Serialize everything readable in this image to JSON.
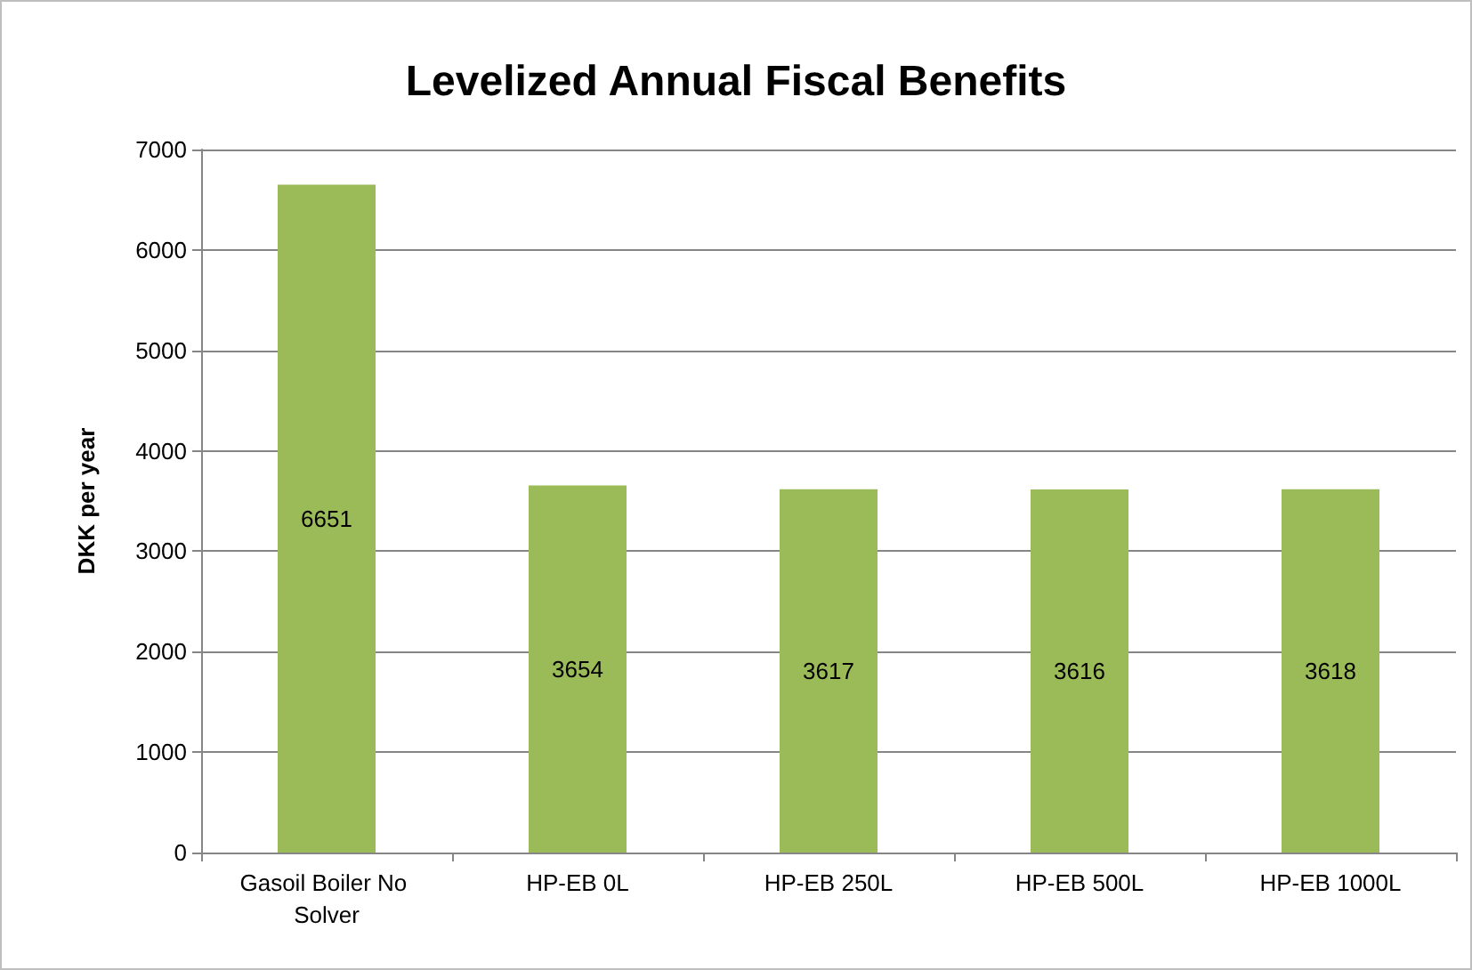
{
  "chart_data": {
    "type": "bar",
    "title": "Levelized Annual Fiscal Benefits",
    "ylabel": "DKK per year",
    "categories": [
      "Gasoil Boiler No Solver",
      "HP-EB 0L",
      "HP-EB 250L",
      "HP-EB 500L",
      "HP-EB 1000L"
    ],
    "values": [
      6651,
      3654,
      3617,
      3616,
      3618
    ],
    "color": "#9bbb59",
    "ylim": [
      0,
      7000
    ],
    "yticks": [
      0,
      1000,
      2000,
      3000,
      4000,
      5000,
      6000,
      7000
    ],
    "grid": "y",
    "data_labels": true
  }
}
